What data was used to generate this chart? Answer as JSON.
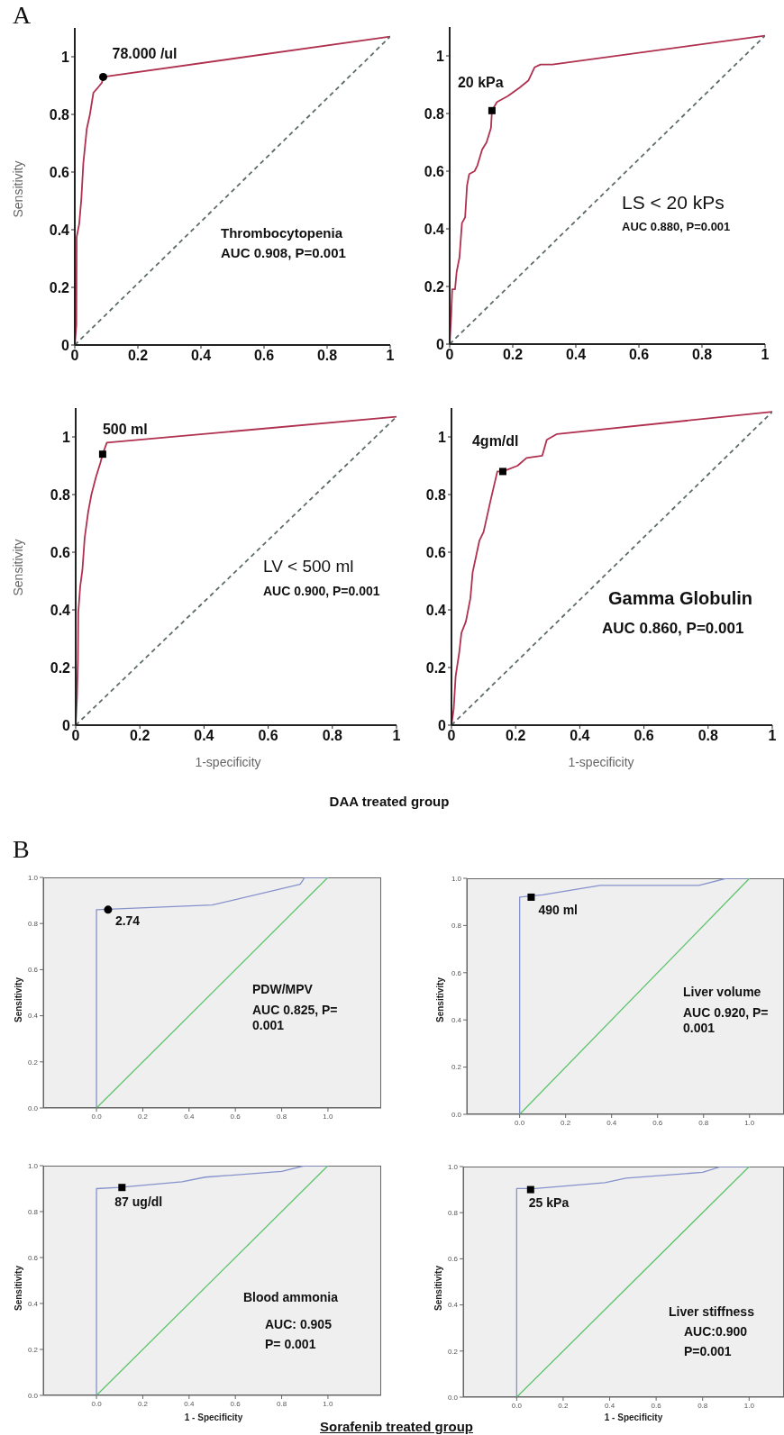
{
  "chart_data": [
    {
      "type": "line",
      "ylabel": "Sensitivity",
      "xlim": [
        0,
        1
      ],
      "ylim": [
        0,
        1.1
      ],
      "xticks": [
        0,
        0.2,
        0.4,
        0.6,
        0.8,
        1
      ],
      "yticks": [
        0,
        0.2,
        0.4,
        0.6,
        0.8,
        1
      ],
      "annotations": [
        "A",
        {
          "text": "78.000 /ul",
          "x": 0.09,
          "y": 0.93
        },
        "Thrombocytopenia",
        "AUC 0.908, P=0.001"
      ],
      "series": [
        {
          "type": "line",
          "color": "#b0304f",
          "x": [
            0,
            0.005,
            0.006,
            0.014,
            0.021,
            0.027,
            0.038,
            0.048,
            0.059,
            0.071,
            0.086,
            0.09,
            1
          ],
          "values": [
            0,
            0.07,
            0.375,
            0.42,
            0.51,
            0.63,
            0.75,
            0.8,
            0.875,
            0.89,
            0.91,
            0.93,
            1.07
          ]
        },
        {
          "type": "line",
          "color": "#5f6b6b",
          "line_style": "dashed",
          "x": [
            0,
            1
          ],
          "values": [
            0,
            1.07
          ]
        },
        {
          "type": "scatter",
          "marker": "circle",
          "color": "#000000",
          "x": [
            0.09
          ],
          "values": [
            0.93
          ]
        }
      ]
    },
    {
      "type": "line",
      "xlim": [
        0,
        1
      ],
      "ylim": [
        0,
        1.1
      ],
      "xticks": [
        0,
        0.2,
        0.4,
        0.6,
        0.8,
        1
      ],
      "yticks": [
        0,
        0.2,
        0.4,
        0.6,
        0.8,
        1
      ],
      "annotations": [
        {
          "text": "20 kPa",
          "x": 0.134,
          "y": 0.81
        },
        "LS < 20 kPs",
        "AUC 0.880, P=0.001"
      ],
      "series": [
        {
          "type": "line",
          "color": "#b0304f",
          "x": [
            0,
            0.005,
            0.008,
            0.017,
            0.022,
            0.031,
            0.039,
            0.049,
            0.055,
            0.062,
            0.079,
            0.088,
            0.103,
            0.117,
            0.131,
            0.134,
            0.15,
            0.184,
            0.222,
            0.25,
            0.269,
            0.288,
            0.326,
            1
          ],
          "values": [
            0,
            0.1,
            0.19,
            0.19,
            0.25,
            0.3,
            0.42,
            0.44,
            0.55,
            0.59,
            0.6,
            0.62,
            0.675,
            0.7,
            0.75,
            0.81,
            0.84,
            0.86,
            0.89,
            0.915,
            0.96,
            0.97,
            0.97,
            1.07
          ]
        },
        {
          "type": "line",
          "color": "#5f6b6b",
          "line_style": "dashed",
          "x": [
            0,
            1
          ],
          "values": [
            0,
            1.07
          ]
        },
        {
          "type": "scatter",
          "marker": "square",
          "color": "#000000",
          "x": [
            0.134
          ],
          "values": [
            0.81
          ]
        }
      ]
    },
    {
      "type": "line",
      "ylabel": "Sensitivity",
      "xlabel": "1-specificity",
      "xlim": [
        0,
        1
      ],
      "ylim": [
        0,
        1.1
      ],
      "xticks": [
        0,
        0.2,
        0.4,
        0.6,
        0.8,
        1
      ],
      "yticks": [
        0,
        0.2,
        0.4,
        0.6,
        0.8,
        1
      ],
      "annotations": [
        {
          "text": "500 ml",
          "x": 0.084,
          "y": 0.94
        },
        "LV < 500 ml",
        "AUC 0.900, P=0.001",
        "DAA treated group"
      ],
      "series": [
        {
          "type": "line",
          "color": "#b0304f",
          "x": [
            0,
            0.004,
            0.007,
            0.008,
            0.014,
            0.021,
            0.028,
            0.039,
            0.049,
            0.063,
            0.077,
            0.084,
            0.097,
            1
          ],
          "values": [
            0,
            0.095,
            0.23,
            0.39,
            0.48,
            0.54,
            0.65,
            0.74,
            0.8,
            0.86,
            0.91,
            0.94,
            0.98,
            1.07
          ]
        },
        {
          "type": "line",
          "color": "#5f6b6b",
          "line_style": "dashed",
          "x": [
            0,
            1
          ],
          "values": [
            0,
            1.07
          ]
        },
        {
          "type": "scatter",
          "marker": "square",
          "color": "#000000",
          "x": [
            0.084
          ],
          "values": [
            0.94
          ]
        }
      ]
    },
    {
      "type": "line",
      "xlabel": "1-specificity",
      "xlim": [
        0,
        1
      ],
      "ylim": [
        0,
        1.1
      ],
      "xticks": [
        0,
        0.2,
        0.4,
        0.6,
        0.8,
        1
      ],
      "yticks": [
        0,
        0.2,
        0.4,
        0.6,
        0.8,
        1
      ],
      "annotations": [
        {
          "text": "4gm/dl",
          "x": 0.16,
          "y": 0.88
        },
        "Gamma Globulin",
        "AUC 0.860, P=0.001"
      ],
      "series": [
        {
          "type": "line",
          "color": "#b0304f",
          "x": [
            0,
            0.007,
            0.013,
            0.024,
            0.031,
            0.045,
            0.059,
            0.066,
            0.087,
            0.1,
            0.122,
            0.143,
            0.16,
            0.206,
            0.234,
            0.283,
            0.297,
            0.329,
            1
          ],
          "values": [
            0,
            0.057,
            0.17,
            0.25,
            0.32,
            0.36,
            0.44,
            0.53,
            0.64,
            0.67,
            0.78,
            0.88,
            0.88,
            0.9,
            0.927,
            0.935,
            0.99,
            1.01,
            1.087
          ]
        },
        {
          "type": "line",
          "color": "#5f6b6b",
          "line_style": "dashed",
          "x": [
            0,
            1
          ],
          "values": [
            0,
            1.087
          ]
        },
        {
          "type": "scatter",
          "marker": "square",
          "color": "#000000",
          "x": [
            0.16
          ],
          "values": [
            0.88
          ]
        }
      ]
    },
    {
      "type": "line",
      "ylabel": "Sensitivity",
      "xlim": [
        -0.23,
        1.23
      ],
      "ylim": [
        0,
        1
      ],
      "xticks": [
        {
          "value": 0,
          "label": "0.0"
        },
        {
          "value": 0.2,
          "label": "0.2"
        },
        {
          "value": 0.4,
          "label": "0.4"
        },
        {
          "value": 0.6,
          "label": "0.6"
        },
        {
          "value": 0.8,
          "label": "0.8"
        },
        {
          "value": 1,
          "label": "1.0"
        }
      ],
      "yticks": [
        {
          "value": 0,
          "label": "0.0"
        },
        {
          "value": 0.2,
          "label": "0.2"
        },
        {
          "value": 0.4,
          "label": "0.4"
        },
        {
          "value": 0.6,
          "label": "0.6"
        },
        {
          "value": 0.8,
          "label": "0.8"
        },
        {
          "value": 1,
          "label": "1.0"
        }
      ],
      "annotations": [
        "B",
        {
          "text": "2.74",
          "x": 0.05,
          "y": 0.86
        },
        "PDW/MPV",
        "AUC 0.825, P= 0.001"
      ],
      "series": [
        {
          "type": "line",
          "color": "#8592cc",
          "x": [
            0,
            0,
            0.5,
            0.88,
            0.9,
            1
          ],
          "values": [
            0,
            0.86,
            0.88,
            0.97,
            1,
            1
          ]
        },
        {
          "type": "line",
          "color": "#5cc46a",
          "line_style": "solid",
          "x": [
            0,
            1
          ],
          "values": [
            0,
            1
          ]
        },
        {
          "type": "scatter",
          "marker": "circle",
          "color": "#000000",
          "x": [
            0.05
          ],
          "values": [
            0.86
          ]
        }
      ]
    },
    {
      "type": "line",
      "ylabel": "Sensitivity",
      "xlim": [
        -0.23,
        1.15
      ],
      "ylim": [
        0,
        1
      ],
      "xticks": [
        {
          "value": 0,
          "label": "0.0"
        },
        {
          "value": 0.2,
          "label": "0.2"
        },
        {
          "value": 0.4,
          "label": "0.4"
        },
        {
          "value": 0.6,
          "label": "0.6"
        },
        {
          "value": 0.8,
          "label": "0.8"
        },
        {
          "value": 1,
          "label": "1.0"
        }
      ],
      "yticks": [
        {
          "value": 0,
          "label": "0.0"
        },
        {
          "value": 0.2,
          "label": "0.2"
        },
        {
          "value": 0.4,
          "label": "0.4"
        },
        {
          "value": 0.6,
          "label": "0.6"
        },
        {
          "value": 0.8,
          "label": "0.8"
        },
        {
          "value": 1,
          "label": "1.0"
        }
      ],
      "annotations": [
        {
          "text": "490 ml",
          "x": 0.05,
          "y": 0.92
        },
        "Liver volume",
        "AUC 0.920, P= 0.001"
      ],
      "series": [
        {
          "type": "line",
          "color": "#8592cc",
          "x": [
            0,
            0,
            0.1,
            0.35,
            0.78,
            0.9,
            1
          ],
          "values": [
            0,
            0.92,
            0.93,
            0.97,
            0.97,
            1,
            1
          ]
        },
        {
          "type": "line",
          "color": "#5cc46a",
          "line_style": "solid",
          "x": [
            0,
            1
          ],
          "values": [
            0,
            1
          ]
        },
        {
          "type": "scatter",
          "marker": "square",
          "color": "#000000",
          "x": [
            0.05
          ],
          "values": [
            0.92
          ]
        }
      ]
    },
    {
      "type": "line",
      "ylabel": "Sensitivity",
      "xlabel": "1 - Specificity",
      "xlim": [
        -0.23,
        1.23
      ],
      "ylim": [
        0,
        1
      ],
      "xticks": [
        {
          "value": 0,
          "label": "0.0"
        },
        {
          "value": 0.2,
          "label": "0.2"
        },
        {
          "value": 0.4,
          "label": "0.4"
        },
        {
          "value": 0.6,
          "label": "0.6"
        },
        {
          "value": 0.8,
          "label": "0.8"
        },
        {
          "value": 1,
          "label": "1.0"
        }
      ],
      "yticks": [
        {
          "value": 0,
          "label": "0.0"
        },
        {
          "value": 0.2,
          "label": "0.2"
        },
        {
          "value": 0.4,
          "label": "0.4"
        },
        {
          "value": 0.6,
          "label": "0.6"
        },
        {
          "value": 0.8,
          "label": "0.8"
        },
        {
          "value": 1,
          "label": "1.0"
        }
      ],
      "annotations": [
        {
          "text": "87 ug/dl",
          "x": 0.11,
          "y": 0.905
        },
        "Blood ammonia",
        "AUC: 0.905",
        "P= 0.001",
        "Sorafenib treated group"
      ],
      "series": [
        {
          "type": "line",
          "color": "#8592cc",
          "x": [
            0,
            0,
            0.1,
            0.37,
            0.47,
            0.8,
            0.9,
            1
          ],
          "values": [
            0,
            0.9,
            0.905,
            0.93,
            0.95,
            0.975,
            1,
            1
          ]
        },
        {
          "type": "line",
          "color": "#5cc46a",
          "line_style": "solid",
          "x": [
            0,
            1
          ],
          "values": [
            0,
            1
          ]
        },
        {
          "type": "scatter",
          "marker": "square",
          "color": "#000000",
          "x": [
            0.11
          ],
          "values": [
            0.905
          ]
        }
      ]
    },
    {
      "type": "line",
      "ylabel": "Sensitivity",
      "xlabel": "1 - Specificity",
      "xlim": [
        -0.23,
        1.15
      ],
      "ylim": [
        0,
        1
      ],
      "xticks": [
        {
          "value": 0,
          "label": "0.0"
        },
        {
          "value": 0.2,
          "label": "0.2"
        },
        {
          "value": 0.4,
          "label": "0.4"
        },
        {
          "value": 0.6,
          "label": "0.6"
        },
        {
          "value": 0.8,
          "label": "0.8"
        },
        {
          "value": 1,
          "label": "1.0"
        }
      ],
      "yticks": [
        {
          "value": 0,
          "label": "0.0"
        },
        {
          "value": 0.2,
          "label": "0.2"
        },
        {
          "value": 0.4,
          "label": "0.4"
        },
        {
          "value": 0.6,
          "label": "0.6"
        },
        {
          "value": 0.8,
          "label": "0.8"
        },
        {
          "value": 1,
          "label": "1.0"
        }
      ],
      "annotations": [
        {
          "text": "25 kPa",
          "x": 0.06,
          "y": 0.9
        },
        "Liver stiffness",
        "AUC:0.900",
        "P=0.001"
      ],
      "series": [
        {
          "type": "line",
          "color": "#8592cc",
          "x": [
            0,
            0,
            0.08,
            0.38,
            0.47,
            0.8,
            0.88,
            1
          ],
          "values": [
            0,
            0.905,
            0.905,
            0.93,
            0.95,
            0.975,
            1,
            1
          ]
        },
        {
          "type": "line",
          "color": "#5cc46a",
          "line_style": "solid",
          "x": [
            0,
            1
          ],
          "values": [
            0,
            1
          ]
        },
        {
          "type": "scatter",
          "marker": "square",
          "color": "#000000",
          "x": [
            0.06
          ],
          "values": [
            0.9
          ]
        }
      ]
    }
  ]
}
